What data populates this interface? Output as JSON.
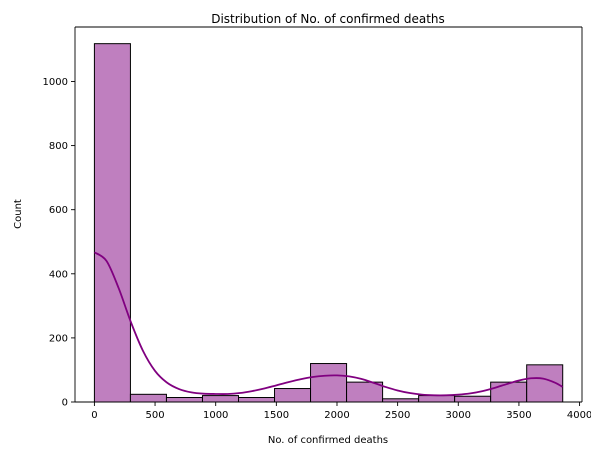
{
  "chart_data": {
    "type": "histogram",
    "title": "Distribution of No. of confirmed deaths",
    "xlabel": "No. of confirmed deaths",
    "ylabel": "Count",
    "xlim": [
      -160,
      4020
    ],
    "ylim": [
      0,
      1170
    ],
    "xticks": [
      0,
      500,
      1000,
      1500,
      2000,
      2500,
      3000,
      3500,
      4000
    ],
    "yticks": [
      0,
      200,
      400,
      600,
      800,
      1000
    ],
    "bin_edges": [
      0,
      297,
      594,
      891,
      1188,
      1485,
      1782,
      2079,
      2376,
      2673,
      2970,
      3267,
      3564,
      3861
    ],
    "counts": [
      1118,
      24,
      14,
      20,
      14,
      42,
      120,
      62,
      10,
      20,
      18,
      62,
      116
    ],
    "kde": {
      "x": [
        0,
        100,
        200,
        300,
        400,
        500,
        600,
        700,
        800,
        900,
        1000,
        1100,
        1200,
        1300,
        1400,
        1500,
        1600,
        1700,
        1800,
        1900,
        2000,
        2100,
        2200,
        2300,
        2400,
        2500,
        2600,
        2700,
        2800,
        2900,
        3000,
        3100,
        3200,
        3300,
        3400,
        3500,
        3600,
        3700,
        3800,
        3860
      ],
      "y": [
        467,
        440,
        355,
        250,
        160,
        97,
        60,
        40,
        30,
        26,
        25,
        25,
        28,
        34,
        42,
        52,
        62,
        71,
        78,
        82,
        83,
        80,
        72,
        60,
        47,
        36,
        28,
        23,
        21,
        21,
        23,
        27,
        34,
        44,
        56,
        67,
        74,
        73,
        60,
        47
      ]
    },
    "bar_color": "#bf7fbf",
    "bar_edge_color": "#000000",
    "line_color": "#800080",
    "grid": false,
    "legend": "none"
  }
}
